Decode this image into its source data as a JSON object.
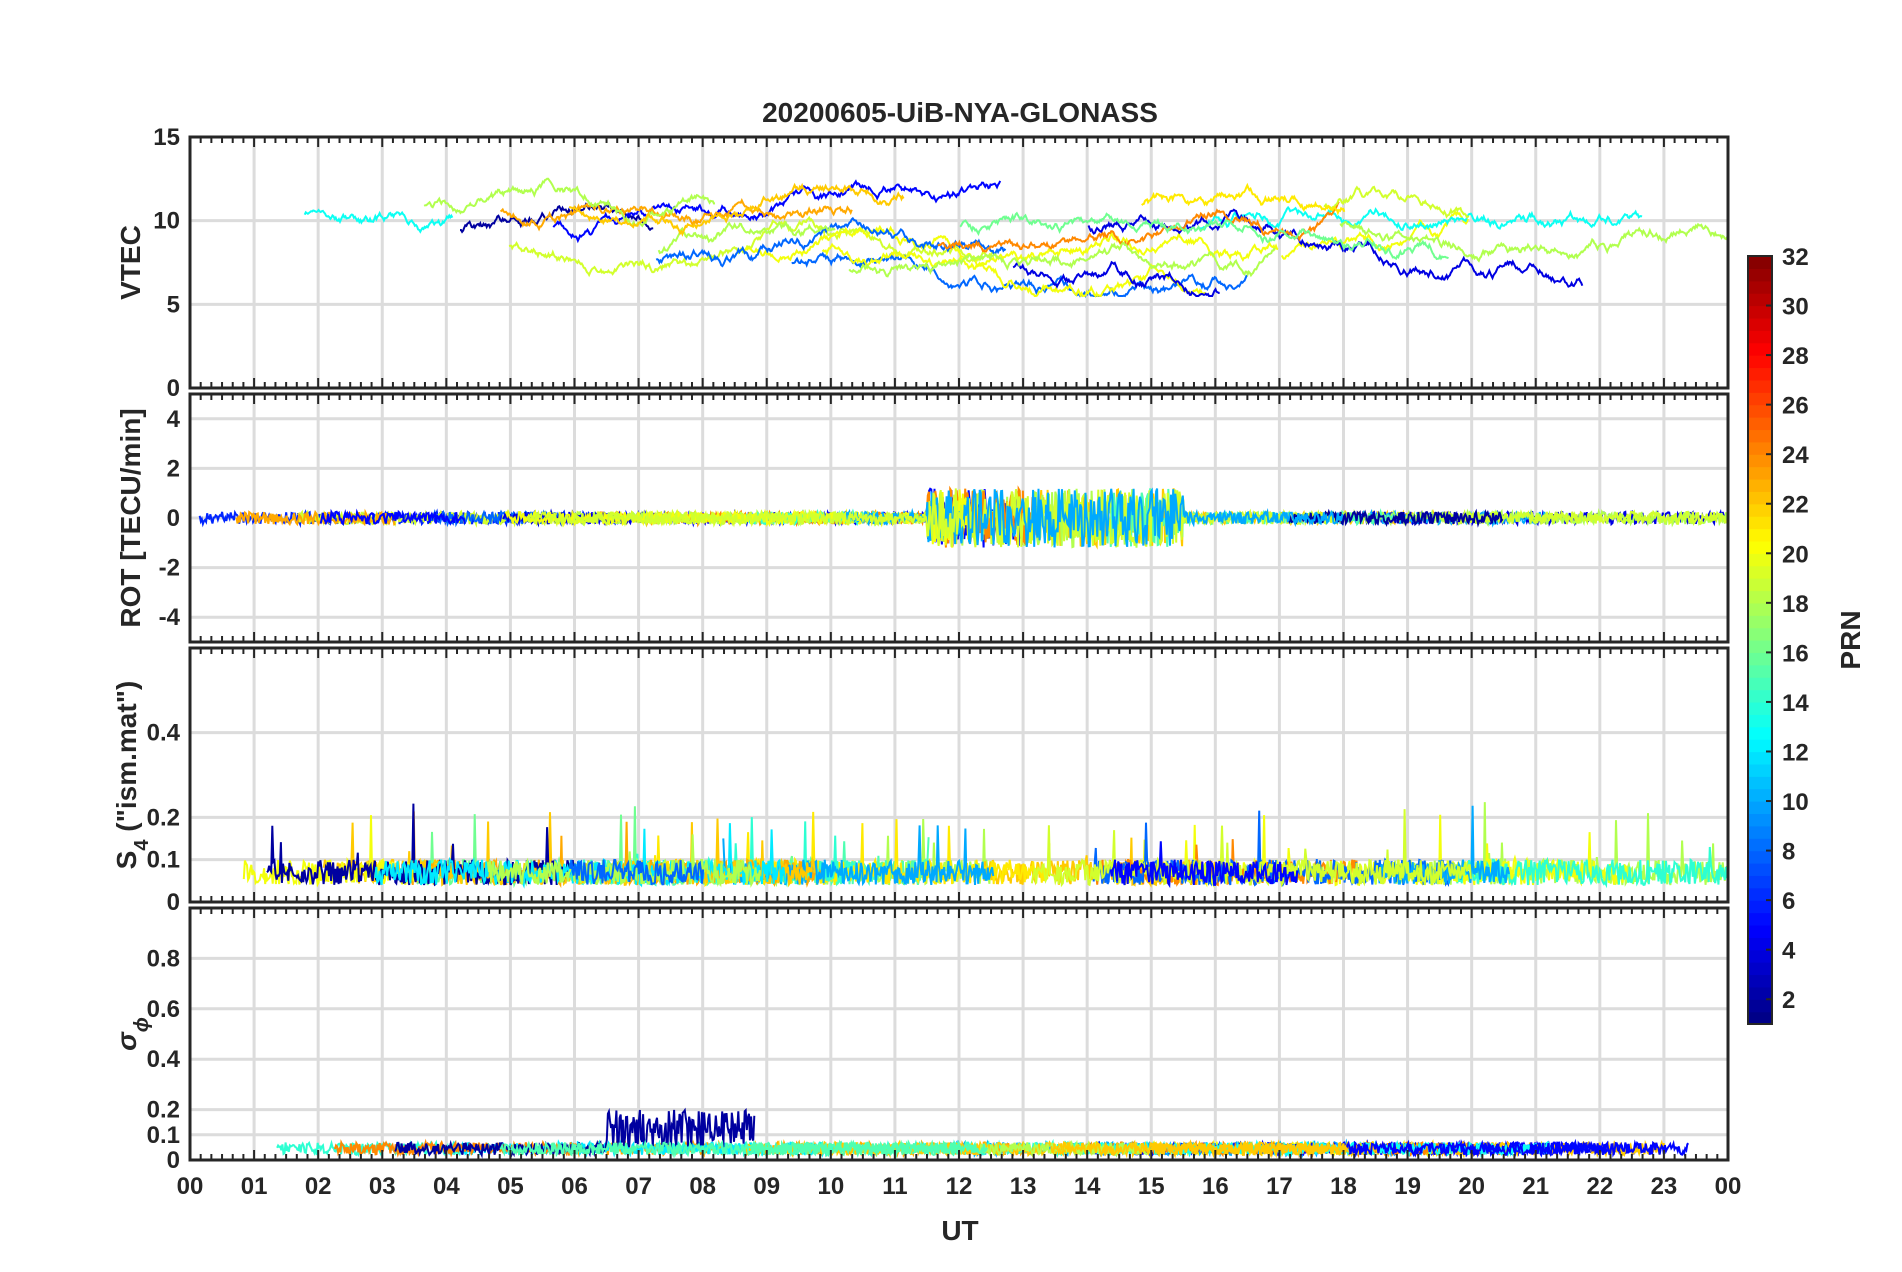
{
  "figure": {
    "title": "20200605-UiB-NYA-GLONASS"
  },
  "chart_data": [
    {
      "type": "line",
      "title": "20200605-UiB-NYA-GLONASS",
      "panel": "vtec",
      "ylabel": "VTEC",
      "ylim": [
        0,
        15
      ],
      "yticks": [
        "0",
        "5",
        "10",
        "15"
      ],
      "x_range_ut_hours": [
        0,
        24
      ],
      "grid": true,
      "series_summary": "many PRN traces between ~6 and ~12 TECU"
    },
    {
      "type": "line",
      "panel": "rot",
      "ylabel": "ROT [TECU/min]",
      "ylim": [
        -5,
        5
      ],
      "yticks": [
        "-4",
        "-2",
        "0",
        "2",
        "4"
      ],
      "x_range_ut_hours": [
        0,
        24
      ],
      "grid": true
    },
    {
      "type": "line",
      "panel": "s4",
      "ylabel_main": "S",
      "ylabel_sub": "4",
      "ylabel_rest": " (\"ism.mat\")",
      "ylim": [
        0,
        0.6
      ],
      "yticks": [
        "0",
        "0.1",
        "0.2",
        "0.4"
      ],
      "x_range_ut_hours": [
        0,
        24
      ],
      "grid": true
    },
    {
      "type": "line",
      "panel": "sigma_phi",
      "ylabel_main": "σ",
      "ylabel_sub": "ϕ",
      "ylim": [
        0,
        1
      ],
      "yticks": [
        "0",
        "0.1",
        "0.2",
        "0.4",
        "0.6",
        "0.8"
      ],
      "x_range_ut_hours": [
        0,
        24
      ],
      "grid": true
    }
  ],
  "xaxis": {
    "label": "UT",
    "ticks": [
      "00",
      "01",
      "02",
      "03",
      "04",
      "05",
      "06",
      "07",
      "08",
      "09",
      "10",
      "11",
      "12",
      "13",
      "14",
      "15",
      "16",
      "17",
      "18",
      "19",
      "20",
      "21",
      "22",
      "23",
      "00"
    ]
  },
  "colorbar": {
    "label": "PRN",
    "range": [
      1,
      32
    ],
    "ticks": [
      "2",
      "4",
      "6",
      "8",
      "10",
      "12",
      "14",
      "16",
      "18",
      "20",
      "22",
      "24",
      "26",
      "28",
      "30",
      "32"
    ],
    "colormap": "jet"
  }
}
